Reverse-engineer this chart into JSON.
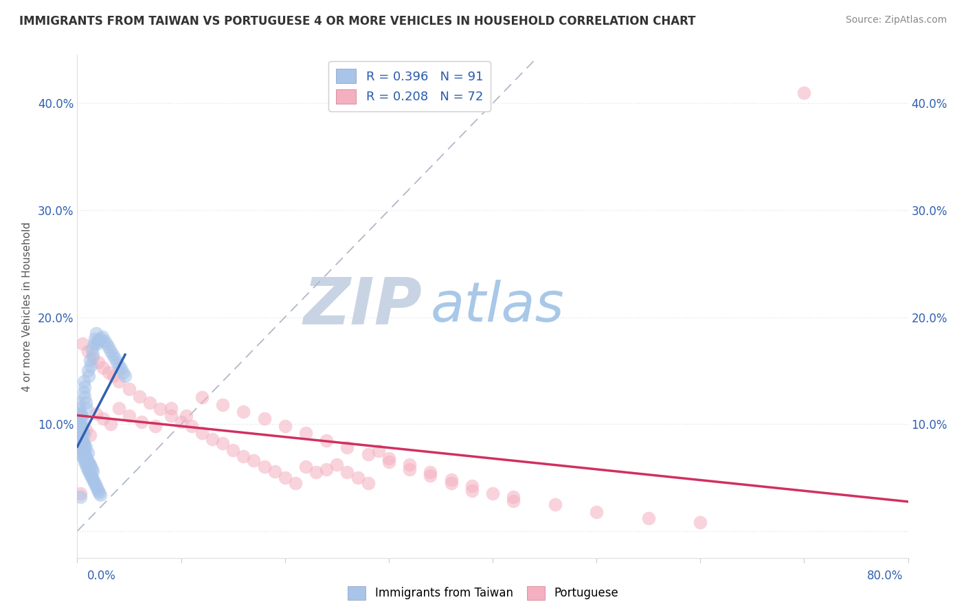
{
  "title": "IMMIGRANTS FROM TAIWAN VS PORTUGUESE 4 OR MORE VEHICLES IN HOUSEHOLD CORRELATION CHART",
  "source": "Source: ZipAtlas.com",
  "ylabel": "4 or more Vehicles in Household",
  "yticks": [
    0.0,
    0.1,
    0.2,
    0.3,
    0.4
  ],
  "ytick_labels_left": [
    "",
    "10.0%",
    "20.0%",
    "30.0%",
    "40.0%"
  ],
  "ytick_labels_right": [
    "",
    "10.0%",
    "20.0%",
    "30.0%",
    "40.0%"
  ],
  "xlim": [
    0.0,
    0.8
  ],
  "ylim": [
    -0.025,
    0.445
  ],
  "legend_r1": "R = 0.396   N = 91",
  "legend_r2": "R = 0.208   N = 72",
  "legend_label1": "Immigrants from Taiwan",
  "legend_label2": "Portuguese",
  "blue_face_color": "#a8c4e8",
  "blue_line_color": "#3060b0",
  "pink_face_color": "#f4b0c0",
  "pink_line_color": "#d03060",
  "legend_text_color": "#3060b0",
  "dash_color": "#b0b8c8",
  "watermark_zip_color": "#c8d4e4",
  "watermark_atlas_color": "#a8c8e8",
  "background_color": "#ffffff",
  "title_color": "#333333",
  "source_color": "#888888",
  "ylabel_color": "#555555",
  "tick_color": "#3060b0",
  "grid_color": "#e0e4ea",
  "taiwan_x": [
    0.001,
    0.001,
    0.001,
    0.002,
    0.002,
    0.002,
    0.002,
    0.003,
    0.003,
    0.003,
    0.003,
    0.004,
    0.004,
    0.004,
    0.004,
    0.005,
    0.005,
    0.005,
    0.006,
    0.006,
    0.006,
    0.006,
    0.007,
    0.007,
    0.007,
    0.008,
    0.008,
    0.008,
    0.009,
    0.009,
    0.01,
    0.01,
    0.01,
    0.011,
    0.011,
    0.012,
    0.012,
    0.013,
    0.013,
    0.014,
    0.014,
    0.015,
    0.015,
    0.016,
    0.017,
    0.018,
    0.019,
    0.02,
    0.021,
    0.022,
    0.001,
    0.001,
    0.002,
    0.002,
    0.003,
    0.003,
    0.004,
    0.004,
    0.005,
    0.005,
    0.006,
    0.006,
    0.007,
    0.007,
    0.008,
    0.009,
    0.01,
    0.011,
    0.012,
    0.013,
    0.014,
    0.015,
    0.016,
    0.017,
    0.018,
    0.019,
    0.02,
    0.022,
    0.024,
    0.026,
    0.028,
    0.03,
    0.032,
    0.034,
    0.036,
    0.038,
    0.04,
    0.042,
    0.044,
    0.046,
    0.003
  ],
  "taiwan_y": [
    0.085,
    0.09,
    0.095,
    0.08,
    0.088,
    0.092,
    0.098,
    0.075,
    0.082,
    0.088,
    0.094,
    0.072,
    0.078,
    0.085,
    0.092,
    0.07,
    0.076,
    0.083,
    0.068,
    0.075,
    0.082,
    0.09,
    0.065,
    0.072,
    0.08,
    0.063,
    0.07,
    0.078,
    0.06,
    0.068,
    0.058,
    0.065,
    0.073,
    0.056,
    0.064,
    0.054,
    0.062,
    0.052,
    0.06,
    0.05,
    0.058,
    0.048,
    0.056,
    0.046,
    0.044,
    0.042,
    0.04,
    0.038,
    0.036,
    0.034,
    0.11,
    0.12,
    0.105,
    0.115,
    0.1,
    0.11,
    0.098,
    0.108,
    0.095,
    0.105,
    0.13,
    0.14,
    0.125,
    0.135,
    0.12,
    0.115,
    0.15,
    0.145,
    0.16,
    0.155,
    0.17,
    0.165,
    0.175,
    0.18,
    0.185,
    0.175,
    0.178,
    0.18,
    0.182,
    0.178,
    0.175,
    0.172,
    0.168,
    0.165,
    0.162,
    0.158,
    0.155,
    0.152,
    0.148,
    0.145,
    0.032
  ],
  "portuguese_x": [
    0.005,
    0.01,
    0.015,
    0.02,
    0.025,
    0.03,
    0.035,
    0.04,
    0.05,
    0.06,
    0.07,
    0.08,
    0.09,
    0.1,
    0.11,
    0.12,
    0.13,
    0.14,
    0.15,
    0.16,
    0.17,
    0.18,
    0.19,
    0.2,
    0.21,
    0.22,
    0.23,
    0.24,
    0.25,
    0.26,
    0.27,
    0.28,
    0.29,
    0.3,
    0.32,
    0.34,
    0.36,
    0.38,
    0.4,
    0.42,
    0.008,
    0.012,
    0.018,
    0.025,
    0.032,
    0.04,
    0.05,
    0.062,
    0.075,
    0.09,
    0.105,
    0.12,
    0.14,
    0.16,
    0.18,
    0.2,
    0.22,
    0.24,
    0.26,
    0.28,
    0.3,
    0.32,
    0.34,
    0.36,
    0.38,
    0.42,
    0.46,
    0.5,
    0.55,
    0.6,
    0.7,
    0.003
  ],
  "portuguese_y": [
    0.175,
    0.168,
    0.162,
    0.158,
    0.153,
    0.148,
    0.145,
    0.14,
    0.133,
    0.126,
    0.12,
    0.114,
    0.108,
    0.102,
    0.098,
    0.092,
    0.086,
    0.082,
    0.076,
    0.07,
    0.066,
    0.06,
    0.056,
    0.05,
    0.045,
    0.06,
    0.055,
    0.058,
    0.062,
    0.055,
    0.05,
    0.045,
    0.075,
    0.068,
    0.062,
    0.055,
    0.048,
    0.042,
    0.035,
    0.028,
    0.095,
    0.09,
    0.11,
    0.105,
    0.1,
    0.115,
    0.108,
    0.102,
    0.098,
    0.115,
    0.108,
    0.125,
    0.118,
    0.112,
    0.105,
    0.098,
    0.092,
    0.085,
    0.078,
    0.072,
    0.065,
    0.058,
    0.052,
    0.045,
    0.038,
    0.032,
    0.025,
    0.018,
    0.012,
    0.008,
    0.41,
    0.035
  ]
}
